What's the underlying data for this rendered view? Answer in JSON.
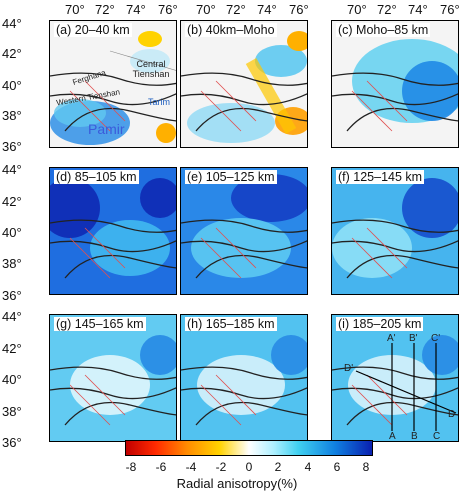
{
  "top_labels": [
    "70°",
    "72°",
    "74°",
    "76°"
  ],
  "left_labels": [
    "44°",
    "42°",
    "40°",
    "38°",
    "36°"
  ],
  "panels": [
    {
      "title": "(a) 20–40 km",
      "style": "a"
    },
    {
      "title": "(b) 40km–Moho",
      "style": "b"
    },
    {
      "title": "(c) Moho–85 km",
      "style": "c"
    },
    {
      "title": "(d) 85–105 km",
      "style": "d"
    },
    {
      "title": "(e) 105–125 km",
      "style": "e"
    },
    {
      "title": "(f) 125–145 km",
      "style": "f"
    },
    {
      "title": "(g) 145–165 km",
      "style": "g"
    },
    {
      "title": "(h) 165–185 km",
      "style": "h"
    },
    {
      "title": "(i) 185–205 km",
      "style": "i"
    }
  ],
  "region_labels": {
    "ferghana": "Ferghana",
    "western_tienshan": "Western Tienshan",
    "central_tienshan": "Central Tienshan",
    "tarim": "Tarim",
    "pamir": "Pamir"
  },
  "profile_labels": [
    "A",
    "A'",
    "B",
    "B'",
    "C",
    "C'",
    "D",
    "D'"
  ],
  "colorbar": {
    "ticks": [
      "-8",
      "-6",
      "-4",
      "-2",
      "0",
      "2",
      "4",
      "6",
      "8"
    ],
    "title": "Radial anisotropy(%)",
    "colors": [
      "#c00000",
      "#ff2a00",
      "#ff8c00",
      "#ffd200",
      "#ffffff",
      "#aef0ff",
      "#40d0f0",
      "#1080e0",
      "#0a20b0"
    ]
  }
}
